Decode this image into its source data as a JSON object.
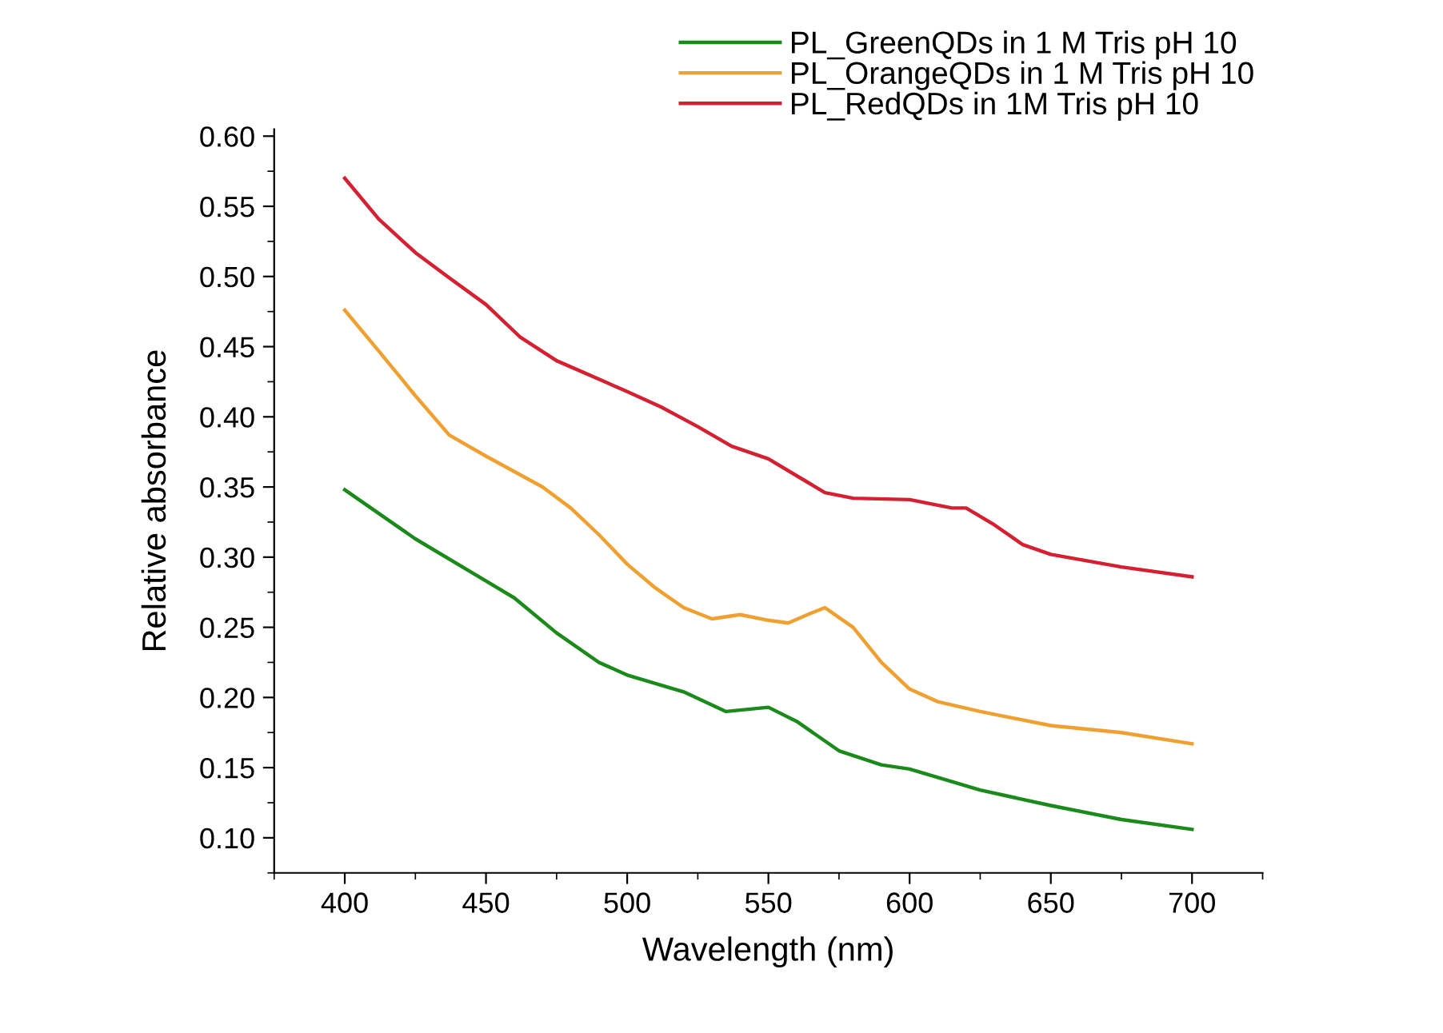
{
  "chart_data": {
    "type": "line",
    "xlabel": "Wavelength (nm)",
    "ylabel": "Relative absorbance",
    "xlim": [
      375,
      725
    ],
    "xticks": [
      400,
      450,
      500,
      550,
      600,
      650,
      700
    ],
    "ylim": [
      0.075,
      0.605
    ],
    "yticks": [
      {
        "value": 0.1,
        "label": "0.10"
      },
      {
        "value": 0.15,
        "label": "0.15"
      },
      {
        "value": 0.2,
        "label": "0.20"
      },
      {
        "value": 0.25,
        "label": "0.25"
      },
      {
        "value": 0.3,
        "label": "0.30"
      },
      {
        "value": 0.35,
        "label": "0.35"
      },
      {
        "value": 0.4,
        "label": "0.40"
      },
      {
        "value": 0.45,
        "label": "0.45"
      },
      {
        "value": 0.5,
        "label": "0.50"
      },
      {
        "value": 0.55,
        "label": "0.55"
      },
      {
        "value": 0.6,
        "label": "0.60"
      }
    ],
    "grid": false,
    "legend": "top right",
    "marker": "none",
    "line_style": "solid",
    "series": [
      {
        "name": "PL_GreenQDs in 1 M Tris pH 10",
        "color": "#1a8a1a",
        "x": [
          400,
          425,
          450,
          460,
          475,
          490,
          500,
          520,
          535,
          550,
          560,
          575,
          590,
          600,
          625,
          650,
          675,
          700
        ],
        "values": [
          0.348,
          0.313,
          0.283,
          0.271,
          0.246,
          0.225,
          0.216,
          0.204,
          0.19,
          0.193,
          0.183,
          0.162,
          0.152,
          0.149,
          0.134,
          0.123,
          0.113,
          0.106
        ]
      },
      {
        "name": "PL_OrangeQDs in 1 M Tris pH 10",
        "color": "#f0a030",
        "x": [
          400,
          412,
          425,
          437,
          450,
          460,
          470,
          480,
          490,
          500,
          510,
          520,
          530,
          540,
          550,
          557,
          565,
          570,
          580,
          590,
          600,
          610,
          625,
          650,
          675,
          700
        ],
        "values": [
          0.476,
          0.447,
          0.415,
          0.387,
          0.372,
          0.361,
          0.35,
          0.335,
          0.316,
          0.295,
          0.278,
          0.264,
          0.256,
          0.259,
          0.255,
          0.253,
          0.26,
          0.264,
          0.25,
          0.225,
          0.206,
          0.197,
          0.19,
          0.18,
          0.175,
          0.167
        ]
      },
      {
        "name": "PL_RedQDs in 1M Tris pH 10",
        "color": "#d42030",
        "x": [
          400,
          412,
          425,
          437,
          450,
          462,
          475,
          500,
          512,
          525,
          537,
          550,
          560,
          570,
          580,
          600,
          615,
          620,
          630,
          640,
          650,
          675,
          700
        ],
        "values": [
          0.57,
          0.541,
          0.517,
          0.499,
          0.48,
          0.457,
          0.44,
          0.418,
          0.407,
          0.393,
          0.379,
          0.37,
          0.358,
          0.346,
          0.342,
          0.341,
          0.335,
          0.335,
          0.323,
          0.309,
          0.302,
          0.293,
          0.286
        ]
      }
    ]
  }
}
